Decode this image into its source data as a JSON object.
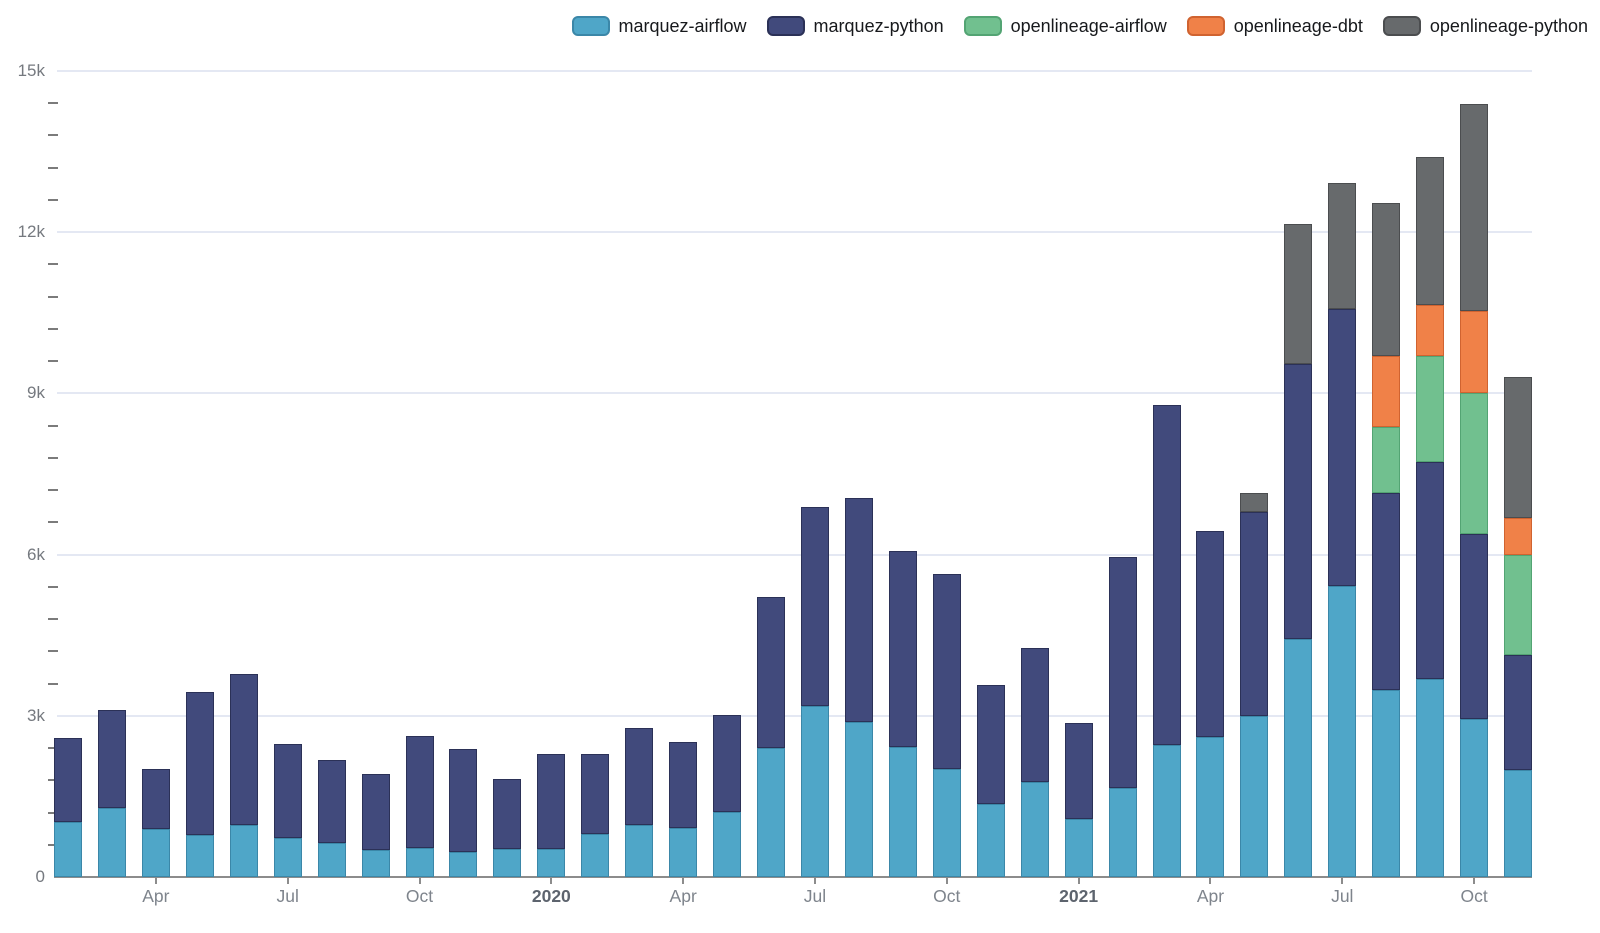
{
  "chart_data": {
    "type": "bar",
    "stacked": true,
    "title": "",
    "xlabel": "",
    "ylabel": "",
    "ylim": [
      0,
      15000
    ],
    "y_major_step": 3000,
    "y_minor_step": 600,
    "y_tick_labels": [
      "0",
      "3k",
      "6k",
      "9k",
      "12k",
      "15k"
    ],
    "grid": "horizontal-major-on",
    "legend_position": "top-right",
    "x": [
      "2019-02",
      "2019-03",
      "2019-04",
      "2019-05",
      "2019-06",
      "2019-07",
      "2019-08",
      "2019-09",
      "2019-10",
      "2019-11",
      "2019-12",
      "2020-01",
      "2020-02",
      "2020-03",
      "2020-04",
      "2020-05",
      "2020-06",
      "2020-07",
      "2020-08",
      "2020-09",
      "2020-10",
      "2020-11",
      "2020-12",
      "2021-01",
      "2021-02",
      "2021-03",
      "2021-04",
      "2021-05",
      "2021-06",
      "2021-07",
      "2021-08",
      "2021-09",
      "2021-10",
      "2021-11"
    ],
    "x_ticks": [
      {
        "index": 2,
        "label": "Apr",
        "bold": false
      },
      {
        "index": 5,
        "label": "Jul",
        "bold": false
      },
      {
        "index": 8,
        "label": "Oct",
        "bold": false
      },
      {
        "index": 11,
        "label": "2020",
        "bold": true
      },
      {
        "index": 14,
        "label": "Apr",
        "bold": false
      },
      {
        "index": 17,
        "label": "Jul",
        "bold": false
      },
      {
        "index": 20,
        "label": "Oct",
        "bold": false
      },
      {
        "index": 23,
        "label": "2021",
        "bold": true
      },
      {
        "index": 26,
        "label": "Apr",
        "bold": false
      },
      {
        "index": 29,
        "label": "Jul",
        "bold": false
      },
      {
        "index": 32,
        "label": "Oct",
        "bold": false
      }
    ],
    "series": [
      {
        "name": "marquez-airflow",
        "color": "#4fa6c8",
        "border_color": "#3b87a8",
        "values": [
          1020,
          1290,
          890,
          780,
          970,
          730,
          630,
          500,
          540,
          470,
          520,
          520,
          800,
          970,
          910,
          1210,
          2400,
          3190,
          2880,
          2420,
          2010,
          1360,
          1770,
          1080,
          1650,
          2450,
          2610,
          3000,
          4430,
          5420,
          3480,
          3690,
          2940,
          1990
        ]
      },
      {
        "name": "marquez-python",
        "color": "#414a7c",
        "border_color": "#2b3157",
        "values": [
          1570,
          1810,
          1120,
          2670,
          2810,
          1750,
          1550,
          1420,
          2090,
          1920,
          1310,
          1770,
          1490,
          1810,
          1610,
          1810,
          2820,
          3690,
          4180,
          3640,
          3620,
          2220,
          2500,
          1780,
          4310,
          6330,
          3820,
          3790,
          5110,
          5150,
          3660,
          4040,
          3450,
          2150
        ]
      },
      {
        "name": "openlineage-airflow",
        "color": "#71c08f",
        "border_color": "#53a473",
        "values": [
          0,
          0,
          0,
          0,
          0,
          0,
          0,
          0,
          0,
          0,
          0,
          0,
          0,
          0,
          0,
          0,
          0,
          0,
          0,
          0,
          0,
          0,
          0,
          0,
          0,
          0,
          0,
          0,
          0,
          0,
          1230,
          1960,
          2610,
          1860
        ]
      },
      {
        "name": "openlineage-dbt",
        "color": "#f08148",
        "border_color": "#d06330",
        "values": [
          0,
          0,
          0,
          0,
          0,
          0,
          0,
          0,
          0,
          0,
          0,
          0,
          0,
          0,
          0,
          0,
          0,
          0,
          0,
          0,
          0,
          0,
          0,
          0,
          0,
          0,
          0,
          0,
          0,
          0,
          1320,
          950,
          1530,
          690
        ]
      },
      {
        "name": "openlineage-python",
        "color": "#676a6c",
        "border_color": "#4b4d4f",
        "values": [
          0,
          0,
          0,
          0,
          0,
          0,
          0,
          0,
          0,
          0,
          0,
          0,
          0,
          0,
          0,
          0,
          0,
          0,
          0,
          0,
          0,
          0,
          0,
          0,
          0,
          0,
          0,
          350,
          2610,
          2340,
          2850,
          2760,
          3860,
          2620
        ]
      }
    ]
  },
  "style": {
    "gridline_color": "#e4e8f3",
    "baseline_color": "#8c8c8c",
    "tick_label_color": "#7e848c",
    "year_label_color": "#5d646e",
    "y_label_color": "#75797f",
    "legend_text_color": "#17191c",
    "background_color": "#ffffff"
  }
}
